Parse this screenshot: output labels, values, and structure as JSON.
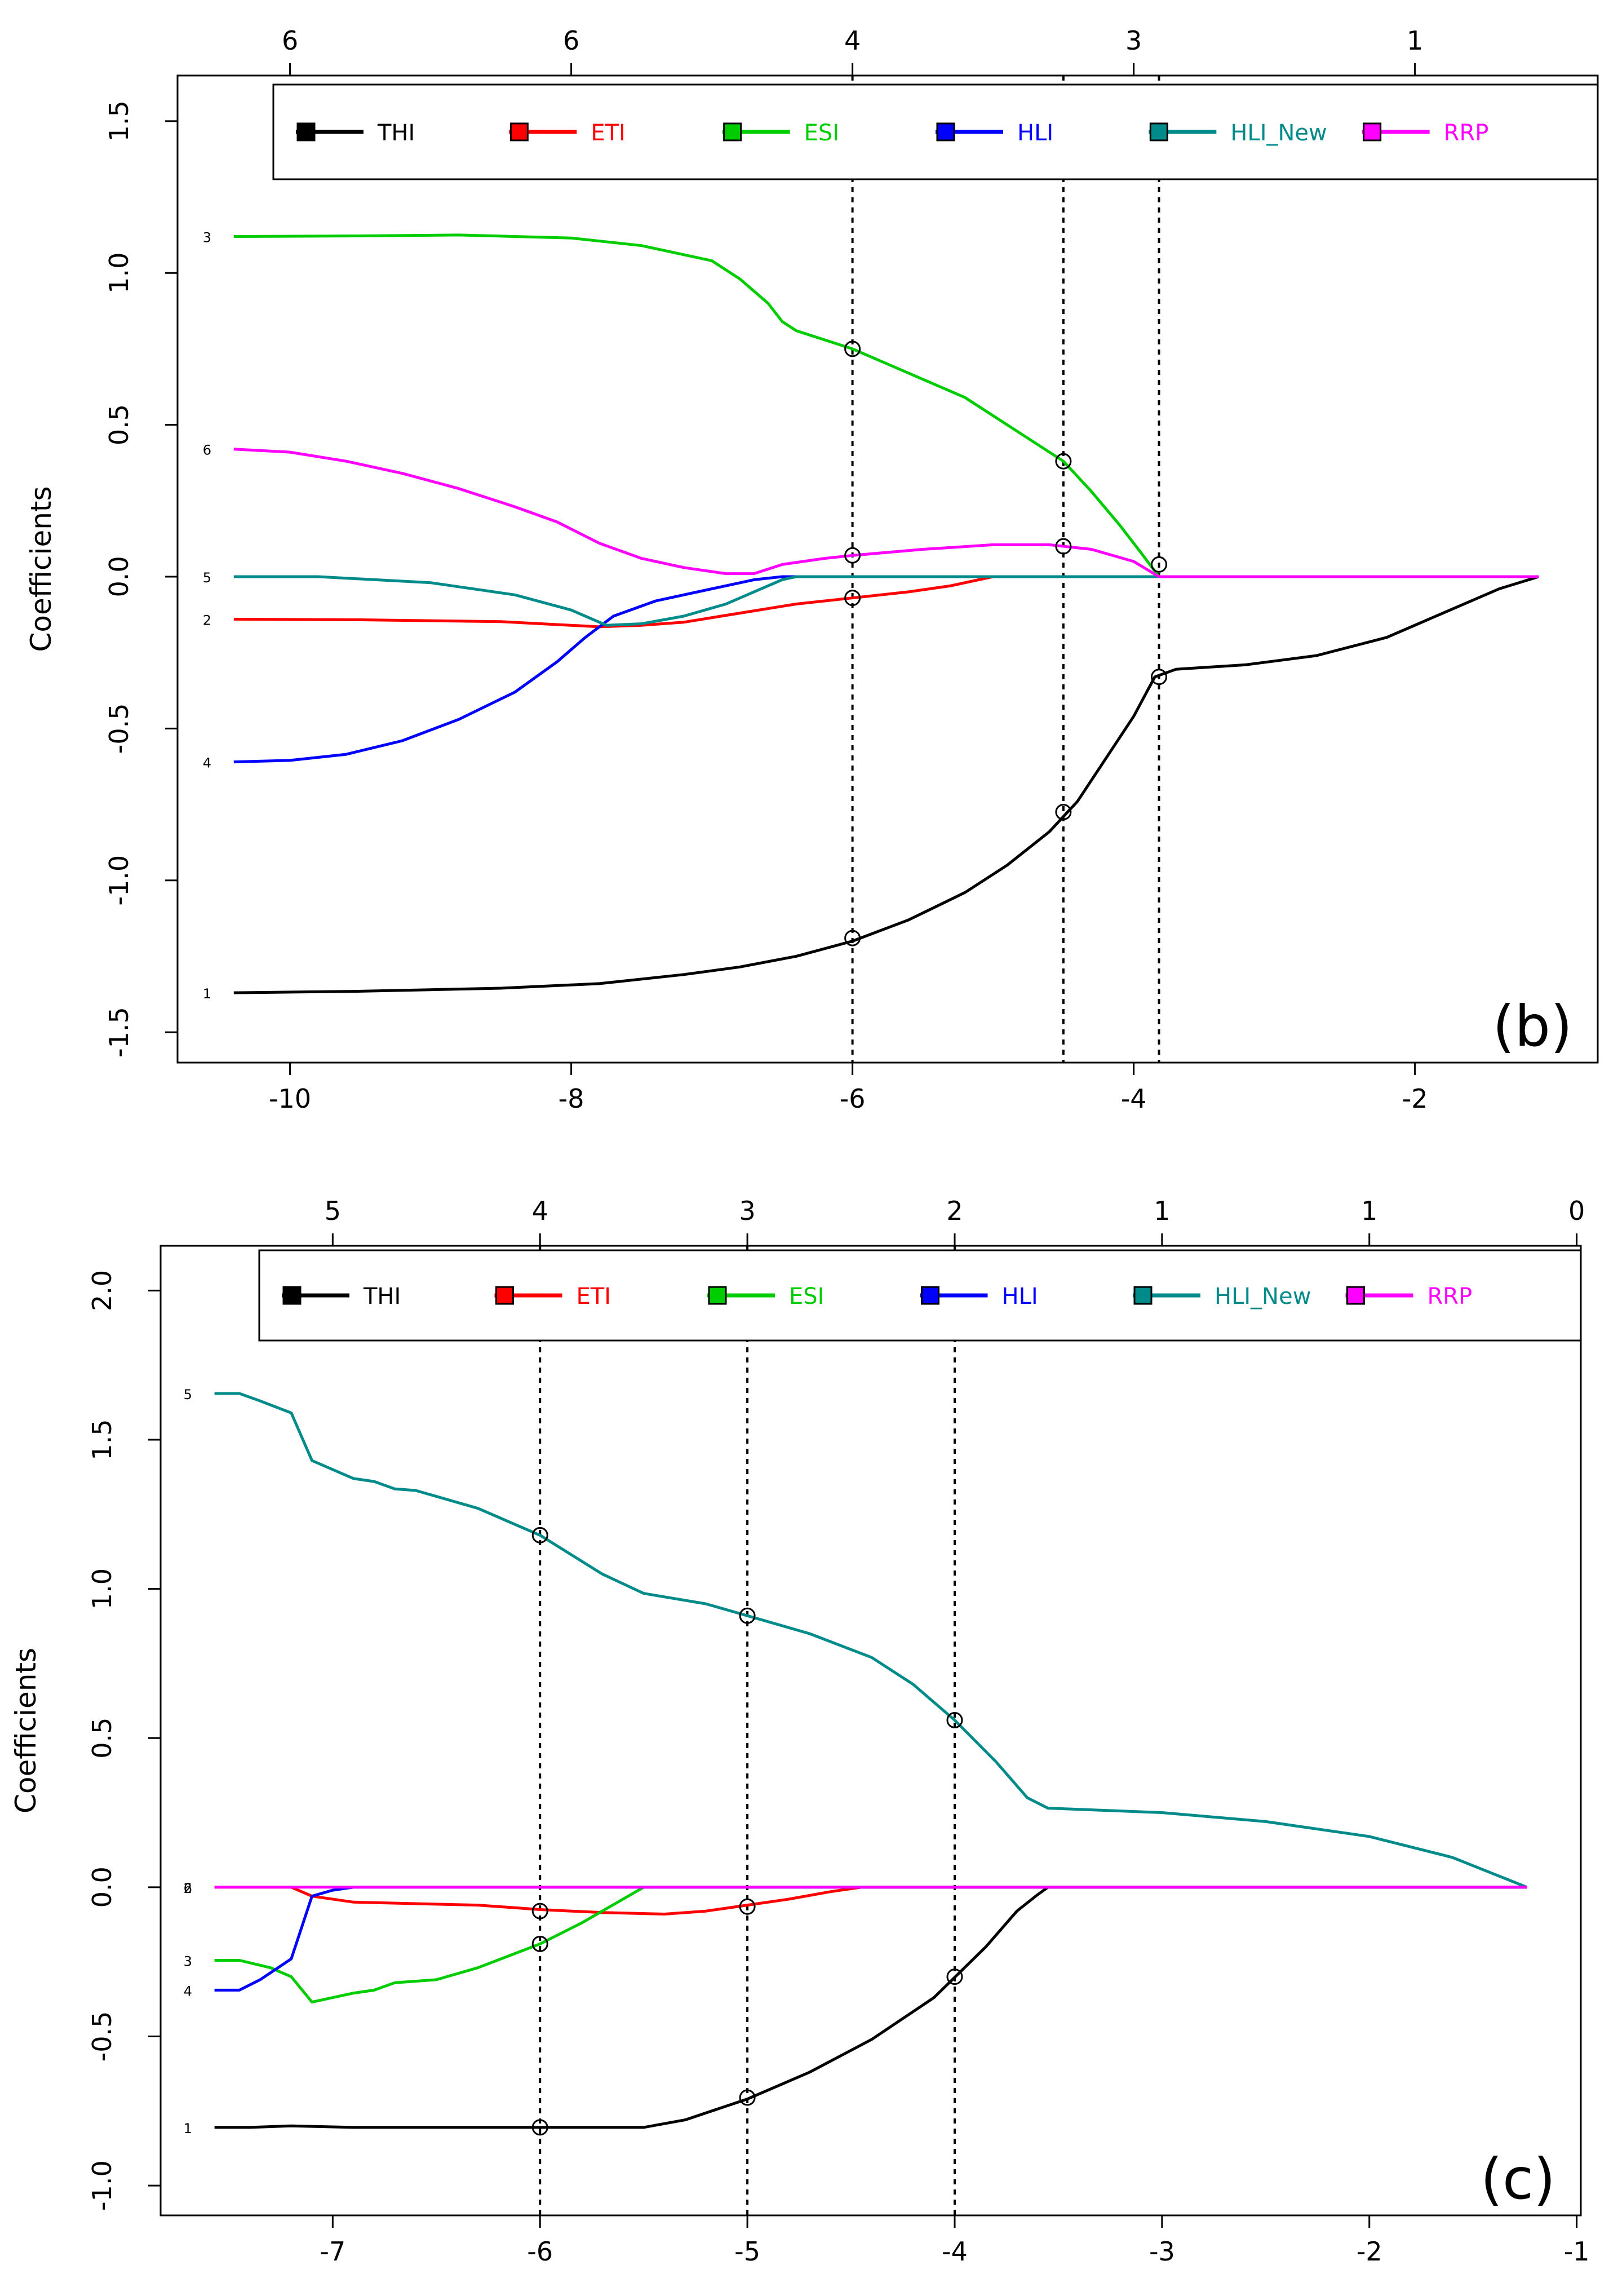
{
  "colors": {
    "THI": "#000000",
    "ETI": "#ff0000",
    "ESI": "#00cd00",
    "HLI": "#0000ff",
    "HLI_New": "#008b8b",
    "RRP": "#ff00ff",
    "axis": "#000000"
  },
  "chart_data": [
    {
      "type": "line",
      "panel_label": "(b)",
      "ylabel": "Coefficients",
      "xlabel": "",
      "xlim": [
        -10.8,
        -0.7
      ],
      "ylim": [
        -1.6,
        1.65
      ],
      "xticks": [
        -10,
        -8,
        -6,
        -4,
        -2
      ],
      "xtick_labels": [
        "-10",
        "-8",
        "-6",
        "-4",
        "-2"
      ],
      "yticks": [
        -1.5,
        -1.0,
        -0.5,
        0.0,
        0.5,
        1.0,
        1.5
      ],
      "ytick_labels": [
        "-1.5",
        "-1.0",
        "-0.5",
        "0.0",
        "0.5",
        "1.0",
        "1.5"
      ],
      "top_ticks": [
        -10,
        -8,
        -6,
        -4,
        -2
      ],
      "top_tick_labels": [
        "6",
        "6",
        "4",
        "3",
        "1"
      ],
      "grid": false,
      "legend_position": "top",
      "legend": [
        "THI",
        "ETI",
        "ESI",
        "HLI",
        "HLI_New",
        "RRP"
      ],
      "vlines": [
        -6.0,
        -4.5,
        -3.82
      ],
      "series": [
        {
          "name": "THI",
          "start_label": "1",
          "points": [
            [
              -10.4,
              -1.37
            ],
            [
              -9.5,
              -1.365
            ],
            [
              -8.5,
              -1.355
            ],
            [
              -7.8,
              -1.34
            ],
            [
              -7.2,
              -1.31
            ],
            [
              -6.8,
              -1.285
            ],
            [
              -6.4,
              -1.25
            ],
            [
              -6.0,
              -1.2
            ],
            [
              -5.6,
              -1.13
            ],
            [
              -5.2,
              -1.04
            ],
            [
              -4.9,
              -0.95
            ],
            [
              -4.6,
              -0.84
            ],
            [
              -4.4,
              -0.74
            ],
            [
              -4.2,
              -0.6
            ],
            [
              -4.0,
              -0.46
            ],
            [
              -3.85,
              -0.33
            ],
            [
              -3.7,
              -0.305
            ],
            [
              -3.2,
              -0.29
            ],
            [
              -2.7,
              -0.26
            ],
            [
              -2.2,
              -0.2
            ],
            [
              -1.8,
              -0.12
            ],
            [
              -1.4,
              -0.04
            ],
            [
              -1.12,
              0.0
            ]
          ],
          "markers": [
            [
              -6.0,
              -1.19
            ],
            [
              -4.5,
              -0.775
            ],
            [
              -3.82,
              -0.33
            ]
          ]
        },
        {
          "name": "ETI",
          "start_label": "2",
          "points": [
            [
              -10.4,
              -0.14
            ],
            [
              -9.5,
              -0.142
            ],
            [
              -8.5,
              -0.148
            ],
            [
              -7.8,
              -0.165
            ],
            [
              -7.5,
              -0.16
            ],
            [
              -7.2,
              -0.15
            ],
            [
              -6.8,
              -0.12
            ],
            [
              -6.4,
              -0.09
            ],
            [
              -6.0,
              -0.07
            ],
            [
              -5.6,
              -0.05
            ],
            [
              -5.3,
              -0.03
            ],
            [
              -5.0,
              0.0
            ],
            [
              -1.12,
              0.0
            ]
          ],
          "markers": [
            [
              -6.0,
              -0.07
            ]
          ]
        },
        {
          "name": "ESI",
          "start_label": "3",
          "points": [
            [
              -10.4,
              1.12
            ],
            [
              -9.5,
              1.122
            ],
            [
              -8.8,
              1.125
            ],
            [
              -8.0,
              1.115
            ],
            [
              -7.5,
              1.09
            ],
            [
              -7.0,
              1.04
            ],
            [
              -6.8,
              0.98
            ],
            [
              -6.6,
              0.9
            ],
            [
              -6.5,
              0.84
            ],
            [
              -6.4,
              0.81
            ],
            [
              -6.0,
              0.75
            ],
            [
              -5.6,
              0.67
            ],
            [
              -5.2,
              0.59
            ],
            [
              -4.8,
              0.47
            ],
            [
              -4.5,
              0.38
            ],
            [
              -4.3,
              0.28
            ],
            [
              -4.1,
              0.17
            ],
            [
              -3.95,
              0.08
            ],
            [
              -3.82,
              0.0
            ],
            [
              -1.12,
              0.0
            ]
          ],
          "markers": [
            [
              -6.0,
              0.75
            ],
            [
              -4.5,
              0.38
            ],
            [
              -3.82,
              0.04
            ]
          ]
        },
        {
          "name": "HLI",
          "start_label": "4",
          "points": [
            [
              -10.4,
              -0.61
            ],
            [
              -10.0,
              -0.605
            ],
            [
              -9.6,
              -0.585
            ],
            [
              -9.2,
              -0.54
            ],
            [
              -8.8,
              -0.47
            ],
            [
              -8.4,
              -0.38
            ],
            [
              -8.1,
              -0.28
            ],
            [
              -7.9,
              -0.2
            ],
            [
              -7.7,
              -0.13
            ],
            [
              -7.4,
              -0.08
            ],
            [
              -7.0,
              -0.04
            ],
            [
              -6.7,
              -0.01
            ],
            [
              -6.5,
              0.0
            ],
            [
              -1.12,
              0.0
            ]
          ],
          "markers": []
        },
        {
          "name": "HLI_New",
          "start_label": "5",
          "points": [
            [
              -10.4,
              0.0
            ],
            [
              -9.8,
              0.0
            ],
            [
              -9.0,
              -0.02
            ],
            [
              -8.4,
              -0.06
            ],
            [
              -8.0,
              -0.11
            ],
            [
              -7.75,
              -0.16
            ],
            [
              -7.5,
              -0.155
            ],
            [
              -7.2,
              -0.13
            ],
            [
              -6.9,
              -0.09
            ],
            [
              -6.7,
              -0.05
            ],
            [
              -6.5,
              -0.01
            ],
            [
              -6.4,
              0.0
            ],
            [
              -1.12,
              0.0
            ]
          ],
          "markers": []
        },
        {
          "name": "RRP",
          "start_label": "6",
          "points": [
            [
              -10.4,
              0.42
            ],
            [
              -10.0,
              0.41
            ],
            [
              -9.6,
              0.38
            ],
            [
              -9.2,
              0.34
            ],
            [
              -8.8,
              0.29
            ],
            [
              -8.4,
              0.23
            ],
            [
              -8.1,
              0.18
            ],
            [
              -7.8,
              0.11
            ],
            [
              -7.5,
              0.06
            ],
            [
              -7.2,
              0.03
            ],
            [
              -6.9,
              0.01
            ],
            [
              -6.7,
              0.01
            ],
            [
              -6.5,
              0.04
            ],
            [
              -6.2,
              0.06
            ],
            [
              -6.0,
              0.07
            ],
            [
              -5.5,
              0.09
            ],
            [
              -5.0,
              0.105
            ],
            [
              -4.6,
              0.105
            ],
            [
              -4.3,
              0.09
            ],
            [
              -4.0,
              0.05
            ],
            [
              -3.82,
              0.0
            ],
            [
              -1.12,
              0.0
            ]
          ],
          "markers": [
            [
              -6.0,
              0.07
            ],
            [
              -4.5,
              0.1
            ]
          ]
        }
      ]
    },
    {
      "type": "line",
      "panel_label": "(c)",
      "ylabel": "Coefficients",
      "xlabel": "",
      "xlim": [
        -7.83,
        -0.98
      ],
      "ylim": [
        -1.1,
        2.15
      ],
      "xticks": [
        -7,
        -6,
        -5,
        -4,
        -3,
        -2,
        -1
      ],
      "xtick_labels": [
        "-7",
        "-6",
        "-5",
        "-4",
        "-3",
        "-2",
        "-1"
      ],
      "yticks": [
        -1.0,
        -0.5,
        0.0,
        0.5,
        1.0,
        1.5,
        2.0
      ],
      "ytick_labels": [
        "-1.0",
        "-0.5",
        "0.0",
        "0.5",
        "1.0",
        "1.5",
        "2.0"
      ],
      "top_ticks": [
        -7,
        -6,
        -5,
        -4,
        -3,
        -2,
        -1
      ],
      "top_tick_labels": [
        "5",
        "4",
        "3",
        "2",
        "1",
        "1",
        "0"
      ],
      "grid": false,
      "legend_position": "top",
      "legend": [
        "THI",
        "ETI",
        "ESI",
        "HLI",
        "HLI_New",
        "RRP"
      ],
      "vlines": [
        -6.0,
        -5.0,
        -4.0
      ],
      "series": [
        {
          "name": "THI",
          "start_label": "1",
          "points": [
            [
              -7.57,
              -0.805
            ],
            [
              -7.4,
              -0.805
            ],
            [
              -7.2,
              -0.8
            ],
            [
              -6.9,
              -0.805
            ],
            [
              -6.6,
              -0.805
            ],
            [
              -6.3,
              -0.805
            ],
            [
              -6.0,
              -0.805
            ],
            [
              -5.7,
              -0.805
            ],
            [
              -5.5,
              -0.805
            ],
            [
              -5.3,
              -0.78
            ],
            [
              -5.0,
              -0.71
            ],
            [
              -4.7,
              -0.62
            ],
            [
              -4.4,
              -0.51
            ],
            [
              -4.1,
              -0.37
            ],
            [
              -3.85,
              -0.2
            ],
            [
              -3.7,
              -0.08
            ],
            [
              -3.6,
              -0.025
            ],
            [
              -3.55,
              0.0
            ],
            [
              -1.24,
              0.0
            ]
          ],
          "markers": [
            [
              -6.0,
              -0.805
            ],
            [
              -5.0,
              -0.705
            ],
            [
              -4.0,
              -0.3
            ]
          ]
        },
        {
          "name": "ETI",
          "start_label": "2",
          "points": [
            [
              -7.57,
              0.0
            ],
            [
              -7.2,
              0.0
            ],
            [
              -7.1,
              -0.03
            ],
            [
              -6.9,
              -0.05
            ],
            [
              -6.6,
              -0.055
            ],
            [
              -6.3,
              -0.06
            ],
            [
              -6.0,
              -0.075
            ],
            [
              -5.7,
              -0.085
            ],
            [
              -5.4,
              -0.09
            ],
            [
              -5.2,
              -0.08
            ],
            [
              -5.0,
              -0.06
            ],
            [
              -4.8,
              -0.04
            ],
            [
              -4.6,
              -0.015
            ],
            [
              -4.45,
              0.0
            ],
            [
              -1.24,
              0.0
            ]
          ],
          "markers": [
            [
              -6.0,
              -0.08
            ],
            [
              -5.0,
              -0.065
            ]
          ]
        },
        {
          "name": "ESI",
          "start_label": "3",
          "points": [
            [
              -7.57,
              -0.245
            ],
            [
              -7.45,
              -0.245
            ],
            [
              -7.3,
              -0.27
            ],
            [
              -7.2,
              -0.3
            ],
            [
              -7.1,
              -0.385
            ],
            [
              -6.9,
              -0.355
            ],
            [
              -6.8,
              -0.345
            ],
            [
              -6.7,
              -0.32
            ],
            [
              -6.5,
              -0.31
            ],
            [
              -6.3,
              -0.27
            ],
            [
              -6.0,
              -0.19
            ],
            [
              -5.8,
              -0.12
            ],
            [
              -5.6,
              -0.04
            ],
            [
              -5.5,
              0.0
            ],
            [
              -1.24,
              0.0
            ]
          ],
          "markers": [
            [
              -6.0,
              -0.19
            ]
          ]
        },
        {
          "name": "HLI",
          "start_label": "4",
          "points": [
            [
              -7.57,
              -0.345
            ],
            [
              -7.45,
              -0.345
            ],
            [
              -7.35,
              -0.31
            ],
            [
              -7.2,
              -0.24
            ],
            [
              -7.1,
              -0.03
            ],
            [
              -7.0,
              -0.01
            ],
            [
              -6.9,
              0.0
            ],
            [
              -1.24,
              0.0
            ]
          ],
          "markers": []
        },
        {
          "name": "HLI_New",
          "start_label": "5",
          "points": [
            [
              -7.57,
              1.655
            ],
            [
              -7.45,
              1.655
            ],
            [
              -7.35,
              1.63
            ],
            [
              -7.2,
              1.59
            ],
            [
              -7.1,
              1.43
            ],
            [
              -6.9,
              1.37
            ],
            [
              -6.8,
              1.36
            ],
            [
              -6.7,
              1.335
            ],
            [
              -6.6,
              1.33
            ],
            [
              -6.3,
              1.27
            ],
            [
              -6.0,
              1.18
            ],
            [
              -5.7,
              1.05
            ],
            [
              -5.5,
              0.985
            ],
            [
              -5.2,
              0.95
            ],
            [
              -5.0,
              0.91
            ],
            [
              -4.7,
              0.85
            ],
            [
              -4.4,
              0.77
            ],
            [
              -4.2,
              0.68
            ],
            [
              -4.0,
              0.56
            ],
            [
              -3.8,
              0.42
            ],
            [
              -3.65,
              0.3
            ],
            [
              -3.55,
              0.265
            ],
            [
              -3.0,
              0.25
            ],
            [
              -2.5,
              0.22
            ],
            [
              -2.0,
              0.17
            ],
            [
              -1.6,
              0.1
            ],
            [
              -1.24,
              0.0
            ]
          ],
          "markers": [
            [
              -6.0,
              1.18
            ],
            [
              -5.0,
              0.91
            ],
            [
              -4.0,
              0.56
            ]
          ]
        },
        {
          "name": "RRP",
          "start_label": "6",
          "points": [
            [
              -7.57,
              0.0
            ],
            [
              -1.24,
              0.0
            ]
          ],
          "markers": []
        }
      ]
    }
  ]
}
